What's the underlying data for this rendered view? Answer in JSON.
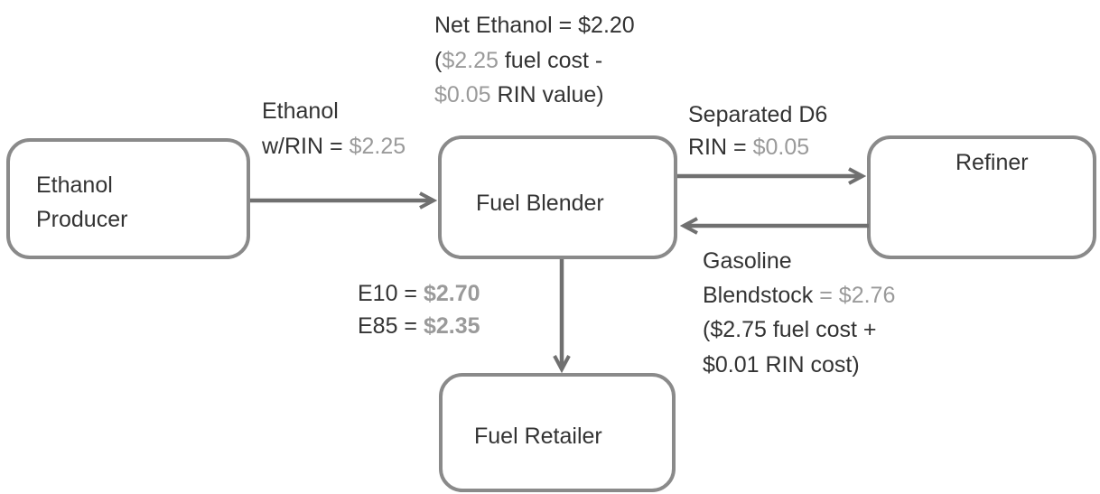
{
  "nodes": [
    {
      "label": [
        "Ethanol",
        "Producer"
      ]
    },
    {
      "label": [
        "Fuel Blender"
      ]
    },
    {
      "label": [
        "Refiner"
      ]
    },
    {
      "label": [
        "Fuel Retailer"
      ]
    }
  ],
  "labels": {
    "net_ethanol": {
      "line1": "Net Ethanol = $2.20",
      "line2_price": "$2.25",
      "line2_text": "fuel cost -",
      "line3_price": "$0.05",
      "line3_text": "RIN value)"
    },
    "ethanol": {
      "line1": "Ethanol",
      "line2_text": "w/RIN =",
      "line2_price": "$2.25"
    },
    "separated": {
      "line1": "Separated D6",
      "line2_text": "RIN =",
      "line2_price": "$0.05"
    },
    "gasoline": {
      "line1": "Gasoline",
      "line2_text": "Blendstock",
      "line2_price": "= $2.76",
      "line3": "($2.75 fuel cost +",
      "line4": "$0.01 RIN cost)"
    },
    "blends": {
      "e10_text": "E10 =",
      "e10_price": "$2.70",
      "e85_text": "E85 =",
      "e85_price": "$2.35"
    }
  }
}
